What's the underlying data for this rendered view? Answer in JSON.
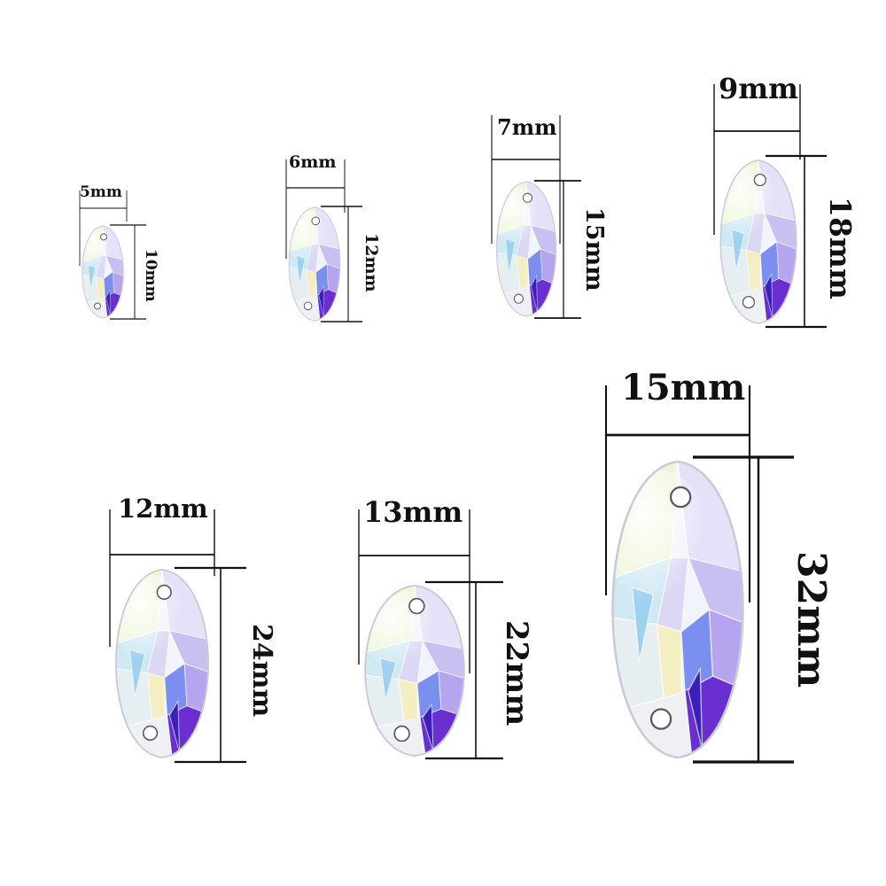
{
  "image": {
    "background": "#ffffff",
    "subject": "navette-crystal",
    "line_color": "#111111",
    "crystals": [
      {
        "id": "c5",
        "width_label": "5mm",
        "length_label": "10mm"
      },
      {
        "id": "c6",
        "width_label": "6mm",
        "length_label": "12mm"
      },
      {
        "id": "c7",
        "width_label": "7mm",
        "length_label": "15mm"
      },
      {
        "id": "c9",
        "width_label": "9mm",
        "length_label": "18mm"
      },
      {
        "id": "c12",
        "width_label": "12mm",
        "length_label": "24mm"
      },
      {
        "id": "c13",
        "width_label": "13mm",
        "length_label": "22mm"
      },
      {
        "id": "c15",
        "width_label": "15mm",
        "length_label": "32mm"
      }
    ]
  }
}
